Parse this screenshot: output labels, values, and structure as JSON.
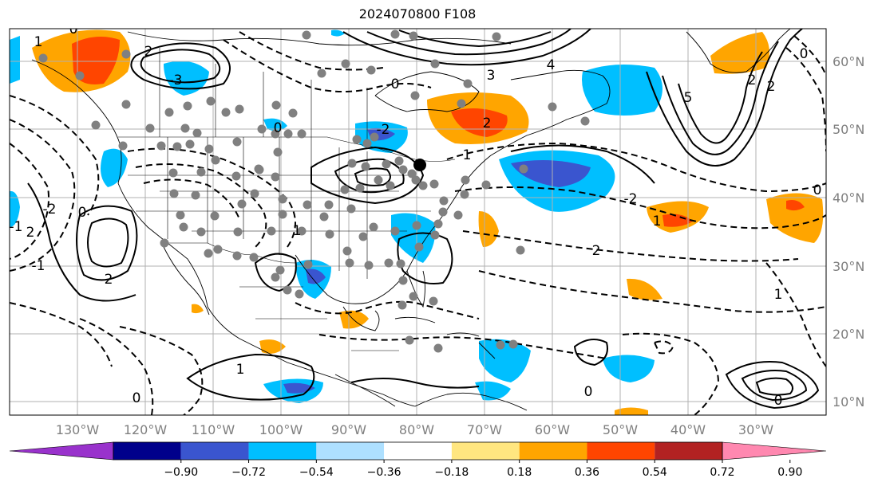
{
  "title": "2024070800 F108",
  "lon_labels": [
    "130°W",
    "120°W",
    "110°W",
    "100°W",
    "90°W",
    "80°W",
    "70°W",
    "60°W",
    "50°W",
    "40°W",
    "30°W"
  ],
  "lat_labels": [
    "60°N",
    "50°N",
    "40°N",
    "30°N",
    "20°N",
    "10°N"
  ],
  "colorbar": {
    "ticks": [
      "−0.90",
      "−0.72",
      "−0.54",
      "−0.36",
      "−0.18",
      "0.18",
      "0.36",
      "0.54",
      "0.72",
      "0.90"
    ],
    "colors": [
      "#9932cc",
      "#00008b",
      "#3a55cf",
      "#00bfff",
      "#aee0ff",
      "#ffffff",
      "#ffe680",
      "#ffa500",
      "#ff4500",
      "#b22222",
      "#ff88b0"
    ]
  },
  "contour_labels": [
    "1",
    "0",
    "2",
    "-3",
    "-2",
    "3",
    "4",
    "5",
    "-1",
    "0",
    "2",
    "-2",
    "0",
    "1",
    "-2",
    "2",
    "1",
    "0",
    "-1",
    "0",
    "2",
    "1",
    "0",
    "0",
    "-2",
    "2",
    "0",
    "1",
    "2",
    "0",
    "1"
  ],
  "colors": {
    "warm": "#ffa500",
    "hot": "#ff4500",
    "cool": "#00bfff",
    "cold": "#3a55cf",
    "marker": "#808080",
    "grid": "#b0b0b0"
  }
}
